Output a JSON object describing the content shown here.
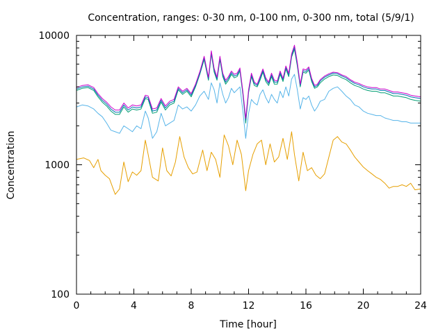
{
  "chart_data": {
    "type": "line",
    "title": "Concentration, ranges: 0-30 nm, 0-100 nm, 0-300 nm, total (5/9/1)",
    "xlabel": "Time [hour]",
    "ylabel": "Concentration",
    "xlim": [
      0,
      24
    ],
    "ylim": [
      100,
      10000
    ],
    "yscale": "log",
    "xticks": [
      "0",
      "4",
      "8",
      "12",
      "16",
      "20",
      "24"
    ],
    "xtick_values": [
      0,
      4,
      8,
      12,
      16,
      20,
      24
    ],
    "xminor_step": 1,
    "yticks": [
      "100",
      "1000",
      "10000"
    ],
    "ytick_values": [
      100,
      1000,
      10000
    ],
    "grid": false,
    "legend": "none",
    "series": [
      {
        "color": "#e69f00",
        "x": [
          0.0,
          0.5,
          0.9,
          1.2,
          1.5,
          1.7,
          2.0,
          2.3,
          2.7,
          3.0,
          3.3,
          3.6,
          3.9,
          4.2,
          4.5,
          4.8,
          5.0,
          5.3,
          5.7,
          6.0,
          6.3,
          6.6,
          6.9,
          7.2,
          7.5,
          7.8,
          8.1,
          8.4,
          8.8,
          9.1,
          9.4,
          9.7,
          10.0,
          10.3,
          10.6,
          10.9,
          11.2,
          11.5,
          11.8,
          12.0,
          12.3,
          12.6,
          12.9,
          13.2,
          13.5,
          13.8,
          14.1,
          14.4,
          14.7,
          15.0,
          15.2,
          15.5,
          15.8,
          16.1,
          16.4,
          16.7,
          17.0,
          17.3,
          17.6,
          17.9,
          18.2,
          18.5,
          18.8,
          19.1,
          19.4,
          19.7,
          20.0,
          20.3,
          20.6,
          20.9,
          21.2,
          21.5,
          21.8,
          22.1,
          22.4,
          22.7,
          23.0,
          23.3,
          23.6,
          24.0
        ],
        "values": [
          1100,
          1130,
          1080,
          950,
          1100,
          900,
          830,
          780,
          590,
          650,
          1050,
          740,
          880,
          830,
          900,
          1550,
          1200,
          800,
          750,
          1350,
          900,
          820,
          1050,
          1650,
          1150,
          950,
          850,
          880,
          1300,
          900,
          1250,
          1100,
          800,
          1700,
          1400,
          1000,
          1550,
          1200,
          630,
          900,
          1200,
          1450,
          1550,
          1000,
          1450,
          1050,
          1150,
          1600,
          1100,
          1800,
          1200,
          750,
          1250,
          900,
          950,
          830,
          780,
          850,
          1150,
          1550,
          1650,
          1500,
          1450,
          1300,
          1150,
          1050,
          960,
          900,
          850,
          800,
          770,
          720,
          660,
          680,
          680,
          700,
          680,
          720,
          640,
          650
        ]
      },
      {
        "color": "#56b4e9",
        "x": [
          0.0,
          0.4,
          0.8,
          1.2,
          1.5,
          1.8,
          2.1,
          2.4,
          2.7,
          3.0,
          3.3,
          3.6,
          3.9,
          4.2,
          4.5,
          4.8,
          5.0,
          5.3,
          5.6,
          5.9,
          6.2,
          6.5,
          6.8,
          7.1,
          7.4,
          7.7,
          8.0,
          8.3,
          8.6,
          8.9,
          9.2,
          9.4,
          9.6,
          9.8,
          10.0,
          10.2,
          10.4,
          10.6,
          10.8,
          11.0,
          11.2,
          11.4,
          11.6,
          11.8,
          12.0,
          12.2,
          12.4,
          12.6,
          12.8,
          13.0,
          13.2,
          13.4,
          13.6,
          13.8,
          14.0,
          14.2,
          14.4,
          14.6,
          14.8,
          15.0,
          15.2,
          15.4,
          15.6,
          15.8,
          16.0,
          16.2,
          16.4,
          16.6,
          16.8,
          17.0,
          17.3,
          17.6,
          17.9,
          18.2,
          18.5,
          18.8,
          19.1,
          19.4,
          19.7,
          20.0,
          20.3,
          20.6,
          20.9,
          21.2,
          21.5,
          21.8,
          22.1,
          22.4,
          22.7,
          23.0,
          23.3,
          23.6,
          24.0
        ],
        "values": [
          2800,
          2900,
          2850,
          2700,
          2500,
          2350,
          2100,
          1850,
          1800,
          1750,
          2000,
          1900,
          1800,
          2000,
          1900,
          2600,
          2300,
          1600,
          1800,
          2500,
          2000,
          2100,
          2200,
          2900,
          2700,
          2800,
          2600,
          2900,
          3400,
          3700,
          3200,
          4300,
          3800,
          3000,
          4300,
          3500,
          3000,
          3300,
          3900,
          3600,
          3800,
          4000,
          2600,
          1600,
          2500,
          3200,
          3000,
          2900,
          3500,
          3800,
          3300,
          3000,
          3500,
          3200,
          3000,
          3700,
          3300,
          4000,
          3400,
          4600,
          5000,
          3800,
          2700,
          3300,
          3200,
          3400,
          2900,
          2600,
          2800,
          3100,
          3200,
          3700,
          3900,
          4000,
          3700,
          3400,
          3200,
          2900,
          2800,
          2600,
          2500,
          2450,
          2400,
          2400,
          2300,
          2250,
          2200,
          2200,
          2150,
          2150,
          2100,
          2100,
          2100
        ]
      },
      {
        "color": "#009e73",
        "x": [
          0.0,
          0.4,
          0.8,
          1.2,
          1.5,
          1.8,
          2.1,
          2.4,
          2.7,
          3.0,
          3.3,
          3.6,
          3.9,
          4.2,
          4.5,
          4.8,
          5.0,
          5.3,
          5.6,
          5.9,
          6.2,
          6.5,
          6.8,
          7.1,
          7.4,
          7.7,
          8.0,
          8.3,
          8.6,
          8.9,
          9.2,
          9.4,
          9.6,
          9.8,
          10.0,
          10.2,
          10.4,
          10.6,
          10.8,
          11.0,
          11.2,
          11.4,
          11.6,
          11.8,
          12.0,
          12.2,
          12.4,
          12.6,
          12.8,
          13.0,
          13.2,
          13.4,
          13.6,
          13.8,
          14.0,
          14.2,
          14.4,
          14.6,
          14.8,
          15.0,
          15.2,
          15.4,
          15.6,
          15.8,
          16.0,
          16.2,
          16.4,
          16.6,
          16.8,
          17.0,
          17.3,
          17.6,
          17.9,
          18.2,
          18.5,
          18.8,
          19.1,
          19.4,
          19.7,
          20.0,
          20.3,
          20.6,
          20.9,
          21.2,
          21.5,
          21.8,
          22.1,
          22.4,
          22.7,
          23.0,
          23.3,
          23.6,
          24.0
        ],
        "values": [
          3750,
          3900,
          3950,
          3750,
          3350,
          3050,
          2850,
          2600,
          2450,
          2450,
          2800,
          2550,
          2700,
          2650,
          2700,
          3250,
          3200,
          2500,
          2550,
          3050,
          2650,
          2900,
          3000,
          3800,
          3500,
          3700,
          3350,
          4000,
          5000,
          6500,
          4500,
          7200,
          5200,
          4500,
          6500,
          4800,
          4200,
          4500,
          5000,
          4700,
          4800,
          5300,
          3500,
          2100,
          3600,
          4800,
          4100,
          4000,
          4500,
          5200,
          4400,
          4100,
          4800,
          4200,
          4200,
          5000,
          4400,
          5500,
          4800,
          6800,
          7800,
          5800,
          4000,
          5200,
          5100,
          5400,
          4400,
          3900,
          4000,
          4300,
          4600,
          4800,
          4950,
          4900,
          4700,
          4550,
          4300,
          4100,
          4000,
          3850,
          3750,
          3700,
          3700,
          3600,
          3600,
          3500,
          3400,
          3400,
          3350,
          3300,
          3200,
          3150,
          3100
        ]
      },
      {
        "color": "#0072b2",
        "x": [
          0.0,
          0.4,
          0.8,
          1.2,
          1.5,
          1.8,
          2.1,
          2.4,
          2.7,
          3.0,
          3.3,
          3.6,
          3.9,
          4.2,
          4.5,
          4.8,
          5.0,
          5.3,
          5.6,
          5.9,
          6.2,
          6.5,
          6.8,
          7.1,
          7.4,
          7.7,
          8.0,
          8.3,
          8.6,
          8.9,
          9.2,
          9.4,
          9.6,
          9.8,
          10.0,
          10.2,
          10.4,
          10.6,
          10.8,
          11.0,
          11.2,
          11.4,
          11.6,
          11.8,
          12.0,
          12.2,
          12.4,
          12.6,
          12.8,
          13.0,
          13.2,
          13.4,
          13.6,
          13.8,
          14.0,
          14.2,
          14.4,
          14.6,
          14.8,
          15.0,
          15.2,
          15.4,
          15.6,
          15.8,
          16.0,
          16.2,
          16.4,
          16.6,
          16.8,
          17.0,
          17.3,
          17.6,
          17.9,
          18.2,
          18.5,
          18.8,
          19.1,
          19.4,
          19.7,
          20.0,
          20.3,
          20.6,
          20.9,
          21.2,
          21.5,
          21.8,
          22.1,
          22.4,
          22.7,
          23.0,
          23.3,
          23.6,
          24.0
        ],
        "values": [
          3850,
          4000,
          4050,
          3850,
          3450,
          3150,
          2950,
          2700,
          2550,
          2550,
          2900,
          2650,
          2800,
          2750,
          2800,
          3350,
          3300,
          2600,
          2650,
          3150,
          2750,
          3000,
          3100,
          3900,
          3600,
          3800,
          3450,
          4100,
          5100,
          6700,
          4600,
          7400,
          5400,
          4600,
          6700,
          4950,
          4350,
          4650,
          5150,
          4850,
          4950,
          5450,
          3600,
          2200,
          3700,
          4950,
          4250,
          4100,
          4650,
          5350,
          4550,
          4250,
          4950,
          4350,
          4350,
          5150,
          4550,
          5650,
          4950,
          7000,
          8100,
          6000,
          4100,
          5350,
          5250,
          5550,
          4550,
          4000,
          4100,
          4450,
          4750,
          4950,
          5100,
          5050,
          4850,
          4700,
          4450,
          4250,
          4150,
          4000,
          3900,
          3850,
          3850,
          3750,
          3750,
          3650,
          3550,
          3550,
          3500,
          3450,
          3350,
          3300,
          3250
        ]
      },
      {
        "color": "#cc00cc",
        "x": [
          0.0,
          0.4,
          0.8,
          1.2,
          1.5,
          1.8,
          2.1,
          2.4,
          2.7,
          3.0,
          3.3,
          3.6,
          3.9,
          4.2,
          4.5,
          4.8,
          5.0,
          5.3,
          5.6,
          5.9,
          6.2,
          6.5,
          6.8,
          7.1,
          7.4,
          7.7,
          8.0,
          8.3,
          8.6,
          8.9,
          9.2,
          9.4,
          9.6,
          9.8,
          10.0,
          10.2,
          10.4,
          10.6,
          10.8,
          11.0,
          11.2,
          11.4,
          11.6,
          11.8,
          12.0,
          12.2,
          12.4,
          12.6,
          12.8,
          13.0,
          13.2,
          13.4,
          13.6,
          13.8,
          14.0,
          14.2,
          14.4,
          14.6,
          14.8,
          15.0,
          15.2,
          15.4,
          15.6,
          15.8,
          16.0,
          16.2,
          16.4,
          16.6,
          16.8,
          17.0,
          17.3,
          17.6,
          17.9,
          18.2,
          18.5,
          18.8,
          19.1,
          19.4,
          19.7,
          20.0,
          20.3,
          20.6,
          20.9,
          21.2,
          21.5,
          21.8,
          22.1,
          22.4,
          22.7,
          23.0,
          23.3,
          23.6,
          24.0
        ],
        "values": [
          3950,
          4100,
          4150,
          3950,
          3550,
          3250,
          3050,
          2800,
          2650,
          2650,
          3000,
          2750,
          2900,
          2850,
          2900,
          3450,
          3400,
          2700,
          2750,
          3250,
          2850,
          3100,
          3200,
          4000,
          3700,
          3900,
          3550,
          4200,
          5250,
          6900,
          4750,
          7600,
          5550,
          4750,
          6900,
          5100,
          4500,
          4800,
          5300,
          5000,
          5100,
          5600,
          3700,
          2280,
          3800,
          5100,
          4350,
          4200,
          4800,
          5500,
          4700,
          4350,
          5100,
          4500,
          4450,
          5300,
          4650,
          5800,
          5100,
          7200,
          8400,
          6200,
          4200,
          5500,
          5400,
          5700,
          4650,
          4100,
          4200,
          4550,
          4850,
          5050,
          5200,
          5150,
          4950,
          4800,
          4550,
          4350,
          4250,
          4100,
          4000,
          3950,
          3950,
          3850,
          3850,
          3750,
          3650,
          3650,
          3600,
          3550,
          3450,
          3400,
          3350
        ]
      }
    ]
  }
}
